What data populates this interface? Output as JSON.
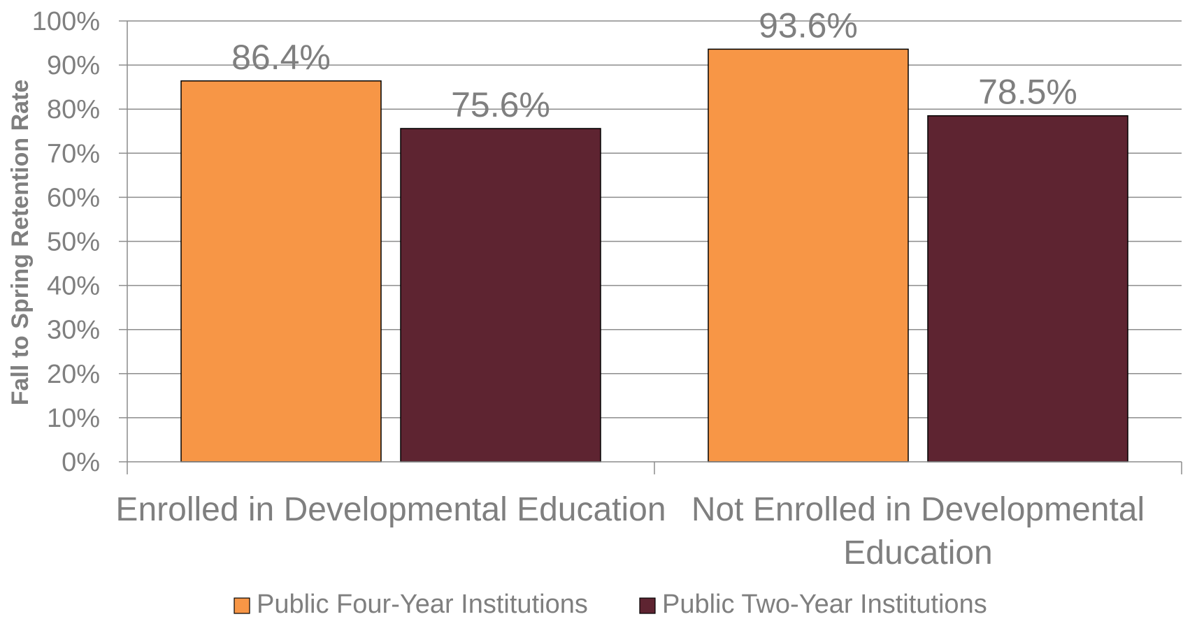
{
  "chart_data": {
    "type": "bar",
    "title": "",
    "xlabel": "",
    "ylabel": "Fall to Spring Retention Rate",
    "ylim": [
      0,
      100
    ],
    "yticks": [
      "0%",
      "10%",
      "20%",
      "30%",
      "40%",
      "50%",
      "60%",
      "70%",
      "80%",
      "90%",
      "100%"
    ],
    "categories": [
      [
        "Enrolled in Developmental Education"
      ],
      [
        "Not Enrolled in Developmental",
        "Education"
      ]
    ],
    "series": [
      {
        "name": "Public Four-Year Institutions",
        "color": "#f79646",
        "values": [
          86.4,
          93.6
        ],
        "labels": [
          "86.4%",
          "93.6%"
        ]
      },
      {
        "name": "Public Two-Year Institutions",
        "color": "#5e2431",
        "values": [
          75.6,
          78.5
        ],
        "labels": [
          "75.6%",
          "78.5%"
        ]
      }
    ],
    "grid": true,
    "legend_position": "bottom"
  }
}
